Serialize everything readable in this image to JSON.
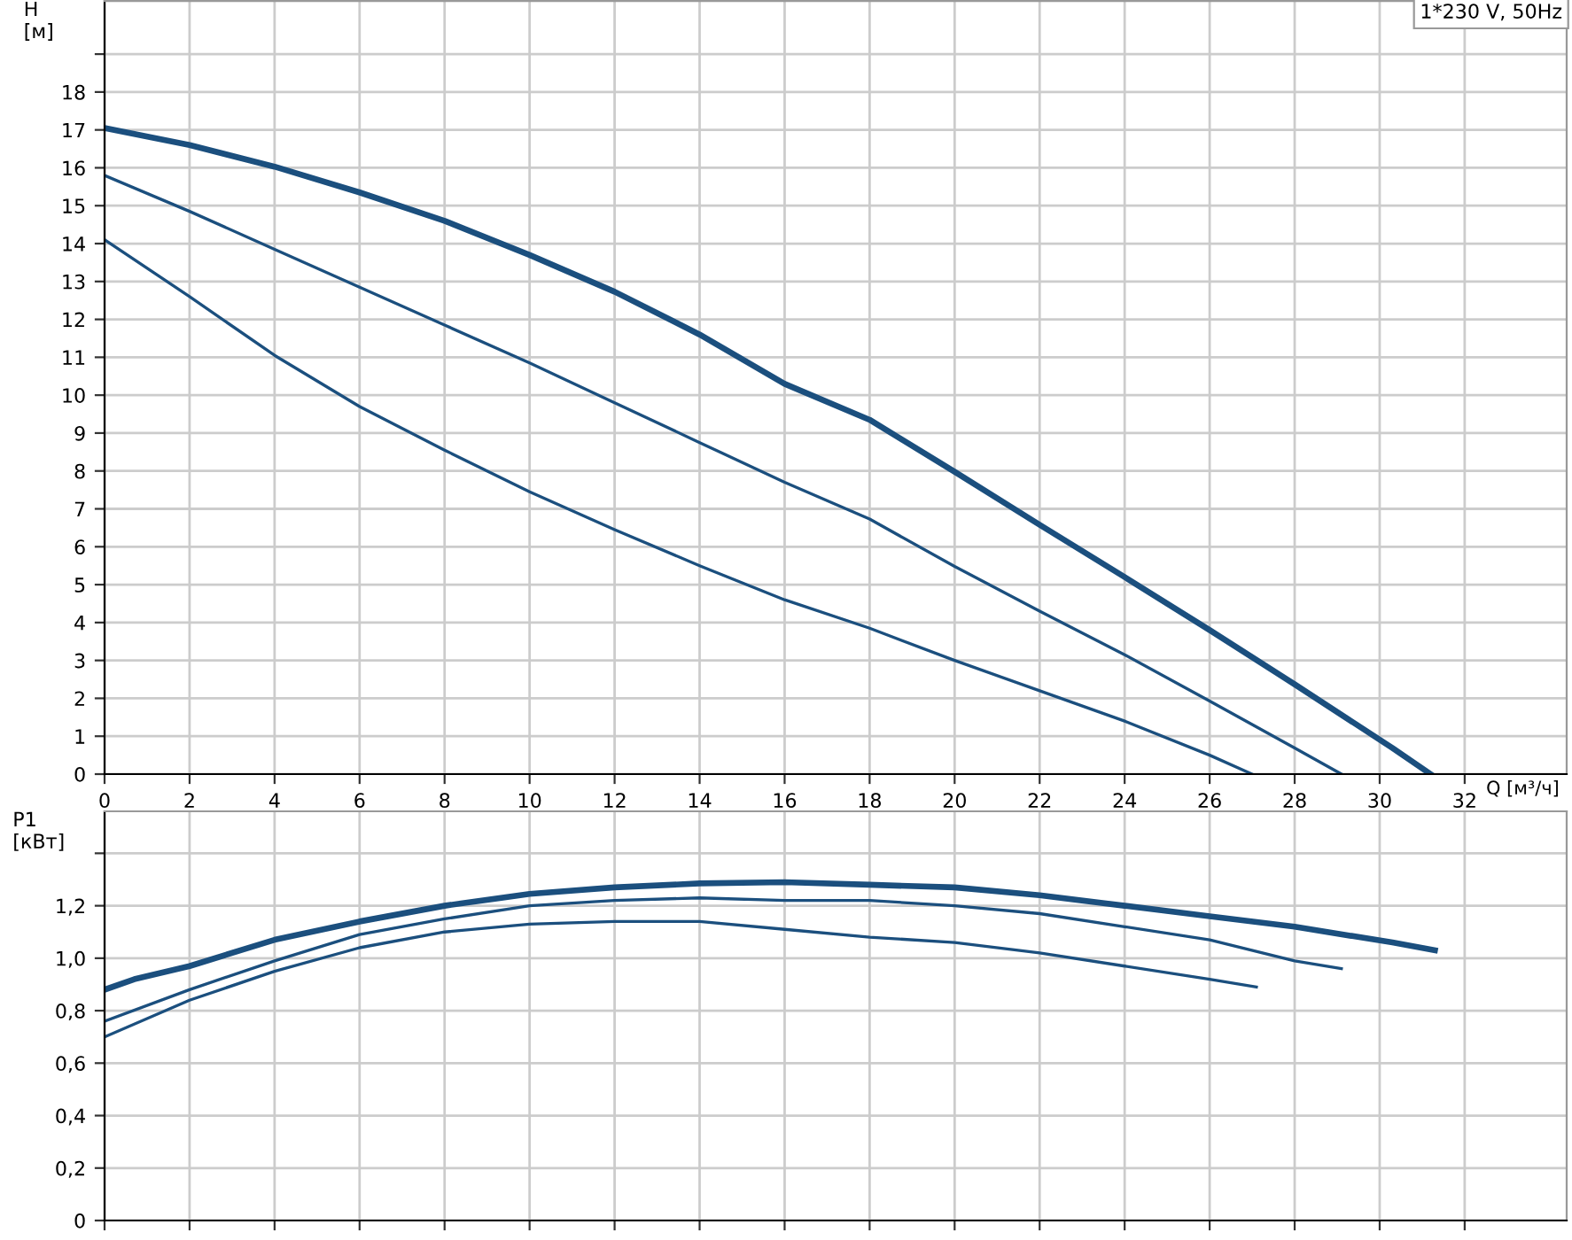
{
  "chart_data": [
    {
      "type": "line",
      "ylabel": "H\n[м]",
      "xlabel": "Q [м³/ч]",
      "annotations": [
        "1*230 V, 50Hz"
      ],
      "xlim": [
        0,
        34.4
      ],
      "xticks": [
        0,
        2,
        4,
        6,
        8,
        10,
        12,
        14,
        16,
        18,
        20,
        22,
        24,
        26,
        28,
        30,
        32
      ],
      "ylim": [
        0,
        20.4
      ],
      "yticks": [
        0,
        1,
        2,
        3,
        4,
        5,
        6,
        7,
        8,
        9,
        10,
        11,
        12,
        13,
        14,
        15,
        16,
        17,
        18,
        {
          "value": 19,
          "label": null
        }
      ],
      "grid": true,
      "marker": "none",
      "line_style": "solid",
      "series": [
        {
          "color": "#1b4f7e",
          "x": [
            0,
            2,
            4,
            6,
            8,
            10,
            12,
            14,
            16,
            18,
            20,
            22,
            24,
            26,
            28,
            30.3,
            31.2
          ],
          "values": [
            17.05,
            16.6,
            16.03,
            15.35,
            14.6,
            13.7,
            12.73,
            11.6,
            10.3,
            9.35,
            7.98,
            6.58,
            5.2,
            3.8,
            2.37,
            0.69,
            0
          ]
        },
        {
          "color": "#1b4f7e",
          "x": [
            0,
            2,
            4,
            6,
            8,
            10,
            12,
            14,
            16,
            18,
            20,
            22,
            24,
            26,
            28,
            29.1
          ],
          "values": [
            15.8,
            14.85,
            13.85,
            12.85,
            11.85,
            10.85,
            9.8,
            8.75,
            7.7,
            6.73,
            5.48,
            4.3,
            3.15,
            1.93,
            0.69,
            0
          ]
        },
        {
          "color": "#1b4f7e",
          "x": [
            0,
            2,
            4,
            6,
            8,
            10,
            12,
            14,
            16,
            18,
            20,
            22,
            24,
            26,
            27
          ],
          "values": [
            14.1,
            12.6,
            11.05,
            9.7,
            8.55,
            7.45,
            6.45,
            5.5,
            4.6,
            3.85,
            3.0,
            2.2,
            1.4,
            0.5,
            0
          ]
        }
      ]
    },
    {
      "type": "line",
      "ylabel": "P1\n[кВт]",
      "tick_labels": "y",
      "xlim": [
        0,
        34.4
      ],
      "xticks": [
        0,
        2,
        4,
        6,
        8,
        10,
        12,
        14,
        16,
        18,
        20,
        22,
        24,
        26,
        28,
        30,
        32
      ],
      "ylim": [
        0,
        1.56
      ],
      "yticks": [
        0,
        {
          "value": 0.2,
          "label": "0,2"
        },
        {
          "value": 0.4,
          "label": "0,4"
        },
        {
          "value": 0.6,
          "label": "0,6"
        },
        {
          "value": 0.8,
          "label": "0,8"
        },
        {
          "value": 1.0,
          "label": "1,0"
        },
        {
          "value": 1.2,
          "label": "1,2"
        },
        {
          "value": 1.4,
          "label": null
        }
      ],
      "grid": true,
      "marker": "none",
      "line_style": "solid",
      "series": [
        {
          "color": "#1b4f7e",
          "x": [
            0,
            0.7,
            2,
            4,
            6,
            8,
            10,
            12,
            14,
            16,
            18,
            20,
            22,
            24,
            26,
            28,
            30.3,
            31.3
          ],
          "values": [
            0.88,
            0.92,
            0.97,
            1.07,
            1.14,
            1.2,
            1.245,
            1.27,
            1.285,
            1.29,
            1.28,
            1.27,
            1.24,
            1.2,
            1.16,
            1.12,
            1.06,
            1.03
          ]
        },
        {
          "color": "#1b4f7e",
          "x": [
            0,
            2,
            4,
            6,
            8,
            10,
            12,
            14,
            16,
            18,
            20,
            22,
            24,
            26,
            28,
            29.1
          ],
          "values": [
            0.76,
            0.88,
            0.99,
            1.09,
            1.15,
            1.2,
            1.22,
            1.23,
            1.22,
            1.22,
            1.2,
            1.17,
            1.12,
            1.07,
            0.99,
            0.96
          ]
        },
        {
          "color": "#1b4f7e",
          "x": [
            0,
            2,
            4,
            6,
            8,
            10,
            12,
            14,
            16,
            18,
            20,
            22,
            24,
            26,
            27.1
          ],
          "values": [
            0.7,
            0.84,
            0.95,
            1.04,
            1.1,
            1.13,
            1.14,
            1.14,
            1.11,
            1.08,
            1.06,
            1.02,
            0.97,
            0.92,
            0.89
          ]
        }
      ]
    }
  ]
}
